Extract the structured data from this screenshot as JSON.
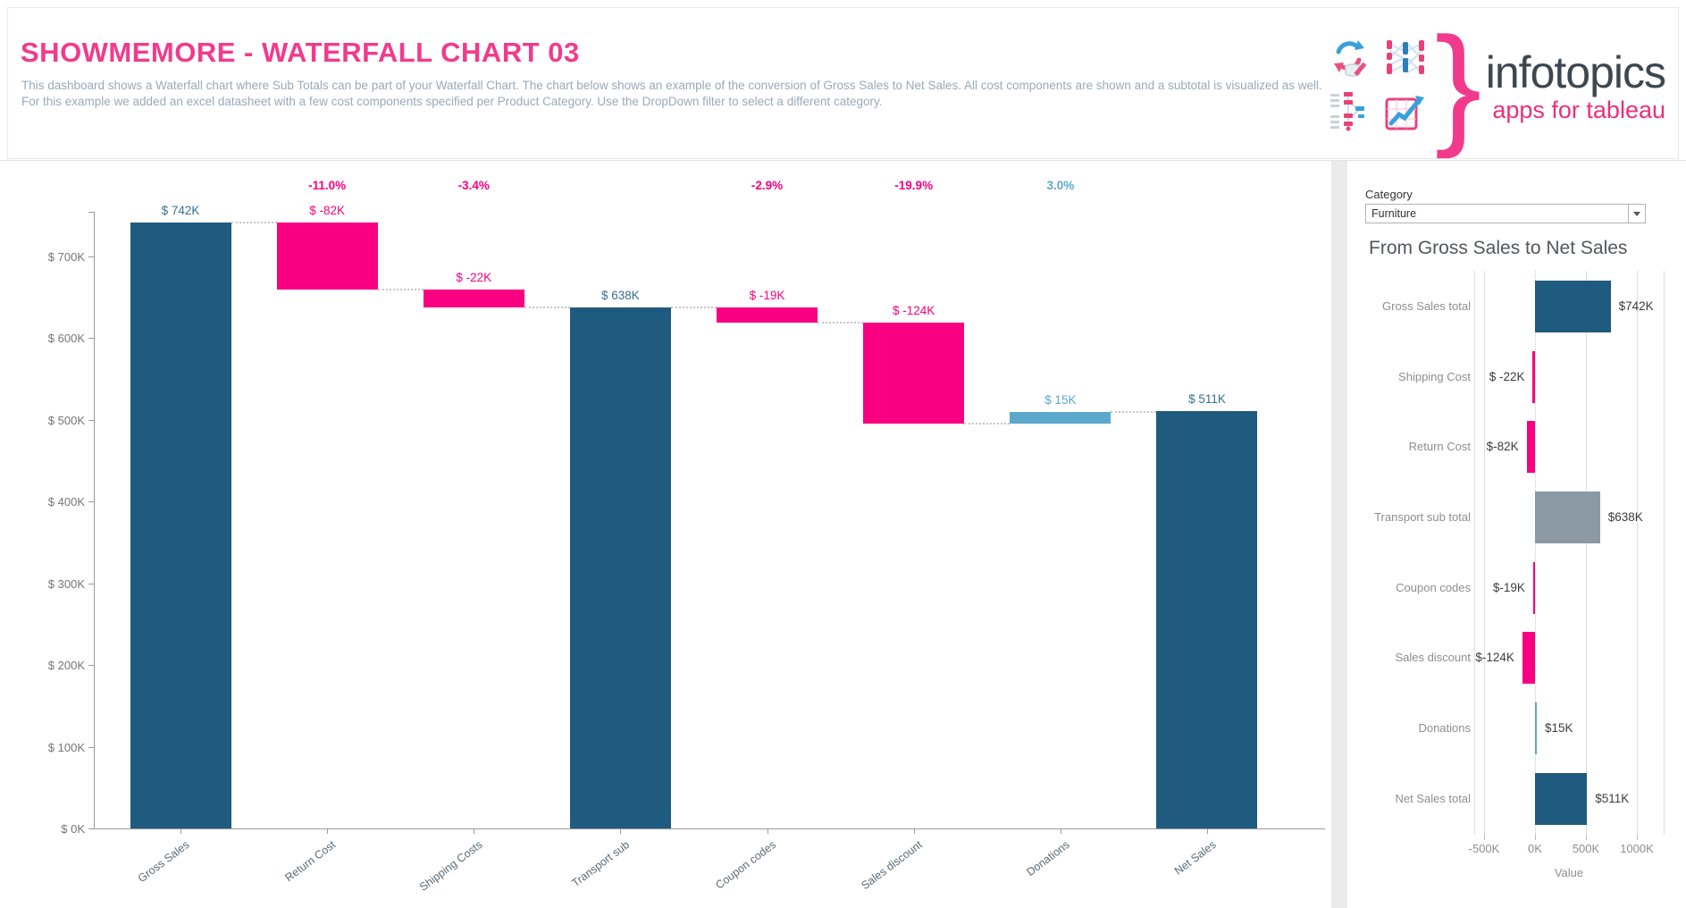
{
  "header": {
    "title": "SHOWMEMORE - WATERFALL CHART 03",
    "description": "This dashboard shows a Waterfall chart where Sub Totals can be part of your Waterfall Chart. The chart below shows an example of the conversion of Gross Sales to Net Sales. All cost components are shown and a subtotal is visualized as well. For this example we added an excel datasheet with a few cost components specified per Product Category. Use the DropDown filter to select a different category.",
    "logo": {
      "brand": "infotopics",
      "tagline": "apps for tableau",
      "brace": "}",
      "icons": [
        "sync-icon",
        "data-flow-icon",
        "gantt-icon",
        "line-chart-icon"
      ]
    }
  },
  "filter": {
    "label": "Category",
    "value": "Furniture"
  },
  "colors": {
    "bar_total": "#1e5b7e",
    "bar_negative": "#f80081",
    "bar_positive": "#5ba8cc",
    "bar_subtotal": "#8a99a3",
    "label_total": "#35708f",
    "accent_pink": "#f23a8c"
  },
  "chart_data": [
    {
      "type": "bar",
      "subtype": "waterfall",
      "title": "",
      "unit": "USD thousands",
      "ylim": [
        0,
        760
      ],
      "grid": false,
      "y_axis": [
        {
          "value": 0,
          "label": "$ 0K"
        },
        {
          "value": 100,
          "label": "$ 100K"
        },
        {
          "value": 200,
          "label": "$ 200K"
        },
        {
          "value": 300,
          "label": "$ 300K"
        },
        {
          "value": 400,
          "label": "$ 400K"
        },
        {
          "value": 500,
          "label": "$ 500K"
        },
        {
          "value": 600,
          "label": "$ 600K"
        },
        {
          "value": 700,
          "label": "$ 700K"
        }
      ],
      "bars": [
        {
          "label": "Gross Sales",
          "value": 742,
          "start": 0,
          "end": 742,
          "value_label": "$ 742K",
          "pct_label": null,
          "role": "total"
        },
        {
          "label": "Return Cost",
          "value": -82,
          "start": 742,
          "end": 660,
          "value_label": "$ -82K",
          "pct_label": "-11.0%",
          "role": "negative"
        },
        {
          "label": "Shipping Costs",
          "value": -22,
          "start": 660,
          "end": 638,
          "value_label": "$ -22K",
          "pct_label": "-3.4%",
          "role": "negative"
        },
        {
          "label": "Transport sub",
          "value": 638,
          "start": 0,
          "end": 638,
          "value_label": "$ 638K",
          "pct_label": null,
          "role": "total"
        },
        {
          "label": "Coupon codes",
          "value": -19,
          "start": 638,
          "end": 619,
          "value_label": "$ -19K",
          "pct_label": "-2.9%",
          "role": "negative"
        },
        {
          "label": "Sales discount",
          "value": -124,
          "start": 619,
          "end": 495,
          "value_label": "$ -124K",
          "pct_label": "-19.9%",
          "role": "negative"
        },
        {
          "label": "Donations",
          "value": 15,
          "start": 495,
          "end": 510,
          "value_label": "$ 15K",
          "pct_label": "3.0%",
          "role": "positive"
        },
        {
          "label": "Net Sales",
          "value": 511,
          "start": 0,
          "end": 511,
          "value_label": "$ 511K",
          "pct_label": null,
          "role": "total"
        }
      ]
    },
    {
      "type": "bar",
      "subtype": "horizontal",
      "title": "From Gross Sales to Net Sales",
      "xlabel": "Value",
      "unit": "USD thousands",
      "xlim": [
        -600,
        1250
      ],
      "grid": true,
      "x_ticks": [
        {
          "value": -500,
          "label": "-500K"
        },
        {
          "value": 0,
          "label": "0K"
        },
        {
          "value": 500,
          "label": "500K"
        },
        {
          "value": 1000,
          "label": "1000K"
        }
      ],
      "rows": [
        {
          "label": "Gross Sales total",
          "value": 742,
          "value_label": "$742K",
          "role": "total"
        },
        {
          "label": "Shipping Cost",
          "value": -22,
          "value_label": "$ -22K",
          "role": "negative"
        },
        {
          "label": "Return Cost",
          "value": -82,
          "value_label": "$-82K",
          "role": "negative"
        },
        {
          "label": "Transport sub total",
          "value": 638,
          "value_label": "$638K",
          "role": "subtotal"
        },
        {
          "label": "Coupon codes",
          "value": -19,
          "value_label": "$-19K",
          "role": "negative"
        },
        {
          "label": "Sales discount",
          "value": -124,
          "value_label": "$-124K",
          "role": "negative"
        },
        {
          "label": "Donations",
          "value": 15,
          "value_label": "$15K",
          "role": "positive"
        },
        {
          "label": "Net Sales total",
          "value": 511,
          "value_label": "$511K",
          "role": "total"
        }
      ]
    }
  ]
}
